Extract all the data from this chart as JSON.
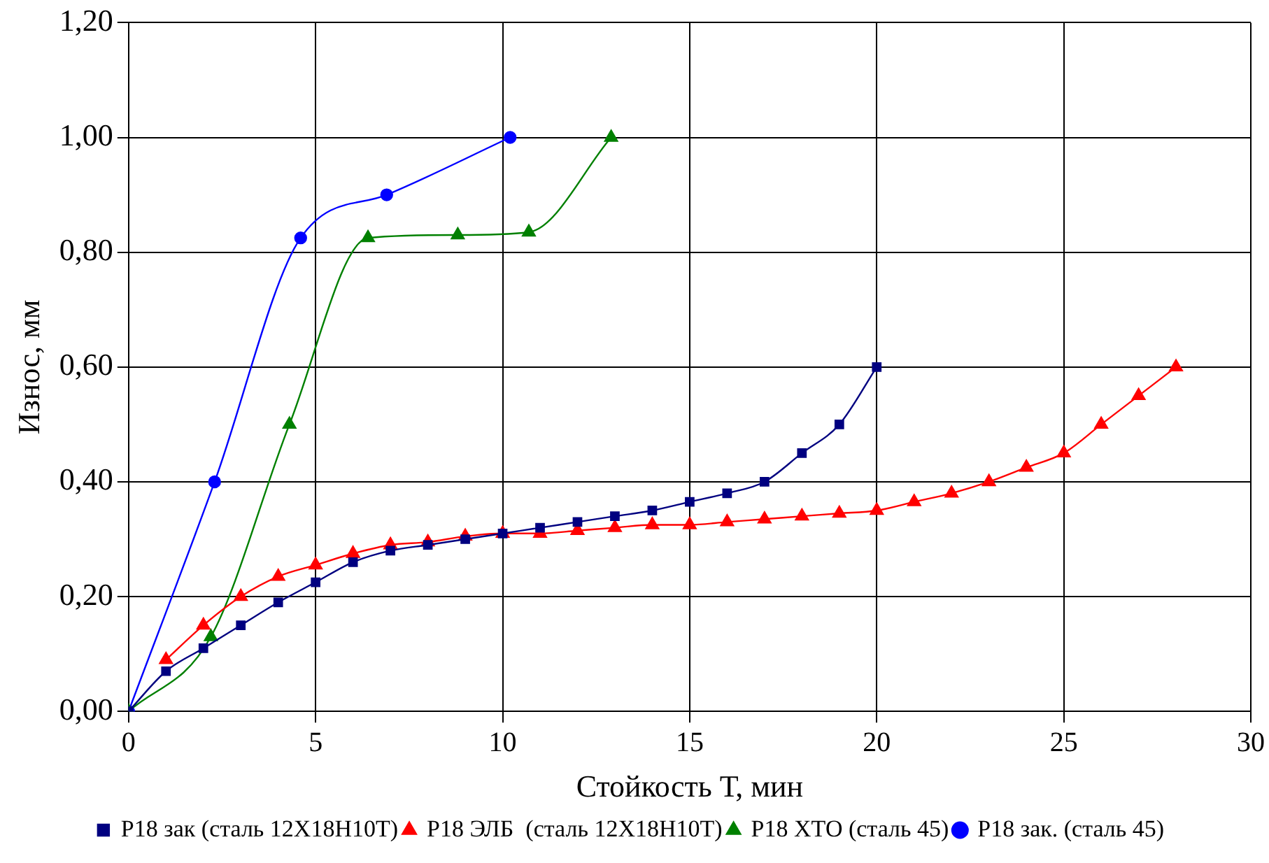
{
  "chart_data": {
    "type": "line",
    "xlabel": "Стойкость Т, мин",
    "ylabel": "Износ, мм",
    "xlim": [
      0,
      30
    ],
    "xticks": [
      0,
      5,
      10,
      15,
      20,
      25,
      30
    ],
    "ylim": [
      0,
      1.2
    ],
    "yticks": [
      {
        "value": 0,
        "label": "0,00"
      },
      {
        "value": 0.2,
        "label": "0,20"
      },
      {
        "value": 0.4,
        "label": "0,40"
      },
      {
        "value": 0.6,
        "label": "0,60"
      },
      {
        "value": 0.8,
        "label": "0,80"
      },
      {
        "value": 1,
        "label": "1,00"
      },
      {
        "value": 1.2,
        "label": "1,20"
      }
    ],
    "grid": true,
    "legend": "bottom",
    "series": [
      {
        "name": "Р18 зак (сталь 12Х18Н10Т)",
        "color": "#000080",
        "marker": "square",
        "x": [
          0,
          1,
          2,
          3,
          4,
          5,
          6,
          7,
          8,
          9,
          10,
          11,
          12,
          13,
          14,
          15,
          16,
          17,
          18,
          19,
          20
        ],
        "values": [
          0,
          0.07,
          0.11,
          0.15,
          0.19,
          0.225,
          0.26,
          0.28,
          0.29,
          0.3,
          0.31,
          0.32,
          0.33,
          0.34,
          0.35,
          0.365,
          0.38,
          0.4,
          0.45,
          0.5,
          0.6
        ]
      },
      {
        "name": "Р18 ЭЛБ  (сталь 12Х18Н10Т)",
        "color": "#ff0000",
        "marker": "triangle",
        "x": [
          1,
          2,
          3,
          4,
          5,
          6,
          7,
          8,
          9,
          10,
          11,
          12,
          13,
          14,
          15,
          16,
          17,
          18,
          19,
          20,
          21,
          22,
          23,
          24,
          25,
          26,
          27,
          28
        ],
        "values": [
          0.09,
          0.15,
          0.2,
          0.235,
          0.255,
          0.275,
          0.29,
          0.295,
          0.305,
          0.31,
          0.31,
          0.315,
          0.32,
          0.325,
          0.325,
          0.33,
          0.335,
          0.34,
          0.345,
          0.35,
          0.365,
          0.38,
          0.4,
          0.425,
          0.45,
          0.5,
          0.55,
          0.6
        ]
      },
      {
        "name": "Р18 ХТО (сталь 45)",
        "color": "#008000",
        "marker": "triangle",
        "x": [
          0,
          2.2,
          4.3,
          6.4,
          8.8,
          10.7,
          12.9
        ],
        "values": [
          0,
          0.13,
          0.5,
          0.825,
          0.83,
          0.835,
          1
        ]
      },
      {
        "name": "Р18 зак. (сталь 45)",
        "color": "#0000ff",
        "marker": "circle",
        "x": [
          0,
          2.3,
          4.6,
          6.9,
          10.2
        ],
        "values": [
          0,
          0.4,
          0.825,
          0.9,
          1
        ]
      }
    ]
  }
}
